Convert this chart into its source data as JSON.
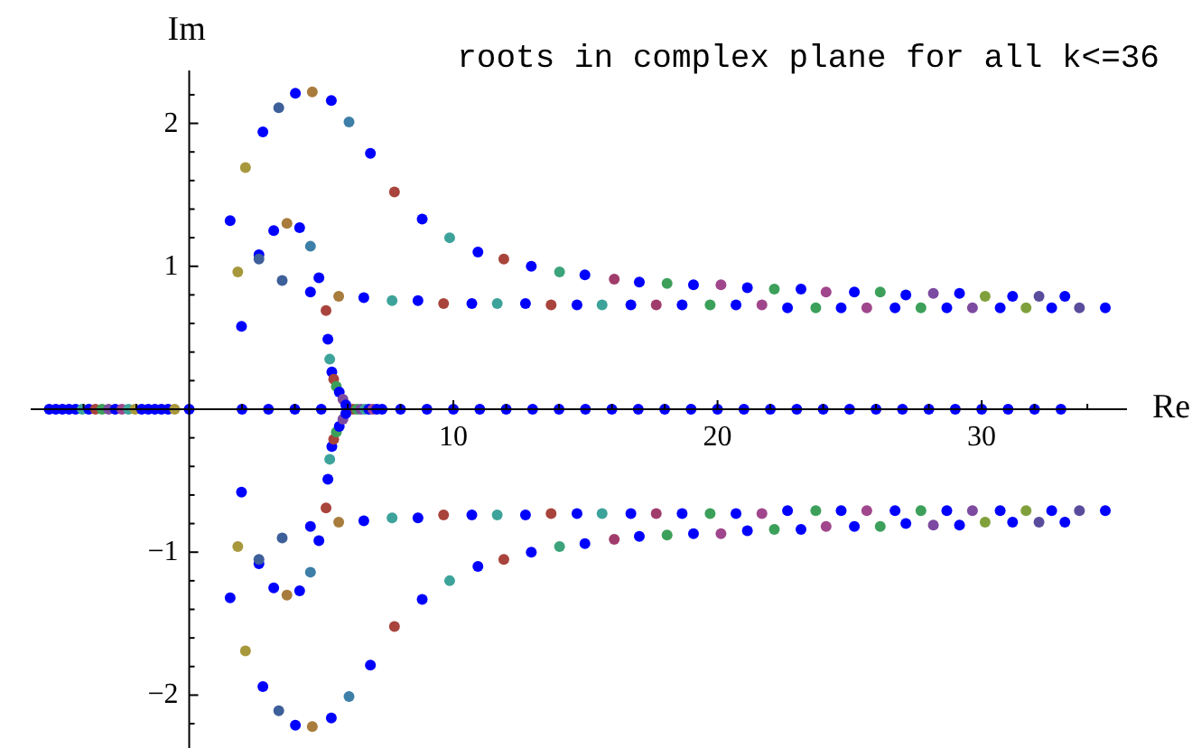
{
  "chart_data": {
    "type": "scatter",
    "title": "roots in complex plane for all k<=36",
    "xlabel": "Re",
    "ylabel": "Im",
    "marker": "circle",
    "xlim": [
      -6,
      35.5
    ],
    "ylim": [
      -2.37,
      2.37
    ],
    "xticks": [
      {
        "value": -4,
        "label": null
      },
      {
        "value": -2,
        "label": null
      },
      {
        "value": 2,
        "label": null
      },
      {
        "value": 4,
        "label": null
      },
      {
        "value": 6,
        "label": null
      },
      {
        "value": 8,
        "label": null
      },
      10,
      {
        "value": 12,
        "label": null
      },
      {
        "value": 14,
        "label": null
      },
      {
        "value": 16,
        "label": null
      },
      {
        "value": 18,
        "label": null
      },
      20,
      {
        "value": 22,
        "label": null
      },
      {
        "value": 24,
        "label": null
      },
      {
        "value": 26,
        "label": null
      },
      {
        "value": 28,
        "label": null
      },
      30,
      {
        "value": 32,
        "label": null
      },
      {
        "value": 34,
        "label": null
      }
    ],
    "yticks": [
      {
        "value": -2.2,
        "label": null
      },
      {
        "value": -2,
        "label": "−2"
      },
      {
        "value": -1.8,
        "label": null
      },
      {
        "value": -1.6,
        "label": null
      },
      {
        "value": -1.4,
        "label": null
      },
      {
        "value": -1.2,
        "label": null
      },
      {
        "value": -1,
        "label": "−1"
      },
      {
        "value": -0.8,
        "label": null
      },
      {
        "value": -0.6,
        "label": null
      },
      {
        "value": -0.4,
        "label": null
      },
      {
        "value": -0.2,
        "label": null
      },
      {
        "value": 0.2,
        "label": null
      },
      {
        "value": 0.4,
        "label": null
      },
      {
        "value": 0.6,
        "label": null
      },
      {
        "value": 0.8,
        "label": null
      },
      1,
      {
        "value": 1.2,
        "label": null
      },
      {
        "value": 1.4,
        "label": null
      },
      {
        "value": 1.6,
        "label": null
      },
      {
        "value": 1.8,
        "label": null
      },
      2,
      {
        "value": 2.2,
        "label": null
      }
    ],
    "series": [
      {
        "x": [
          -5.3,
          -5.05,
          -4.8,
          -4.55,
          -4.3,
          -4.05,
          -3.8,
          -3.55,
          -3.3,
          -3.05,
          -2.8,
          -2.55,
          -2.3,
          -2.05,
          -1.8,
          -1.55,
          -1.3,
          -1.05,
          -0.8,
          -0.55,
          0,
          2,
          3,
          4,
          5,
          6.2,
          6.35,
          6.5,
          6.65,
          6.8,
          6.95,
          7.1,
          7.3,
          8,
          9,
          10,
          11,
          12,
          13,
          14,
          15,
          16,
          17,
          18,
          19,
          20,
          21,
          22,
          23,
          24,
          25,
          26,
          27,
          28,
          29,
          30,
          31,
          32,
          33
        ],
        "values": [
          0,
          0,
          0,
          0,
          0,
          0,
          0,
          0,
          0,
          0,
          0,
          0,
          0,
          0,
          0,
          0,
          0,
          0,
          0,
          0,
          0,
          0,
          0,
          0,
          0,
          0,
          0,
          0,
          0,
          0,
          0,
          0,
          0,
          0,
          0,
          0,
          0,
          0,
          0,
          0,
          0,
          0,
          0,
          0,
          0,
          0,
          0,
          0,
          0,
          0,
          0,
          0,
          0,
          0,
          0,
          0,
          0,
          0,
          0
        ],
        "colors": [
          "#0000ff",
          "#0000ff",
          "#0000ff",
          "#0000ff",
          "#0000ff",
          "#3da39a",
          "#0000ff",
          "#a8443c",
          "#3ca05a",
          "#7c4aa0",
          "#0000ff",
          "#a0468c",
          "#3da39a",
          "#a8983c",
          "#0000ff",
          "#0000ff",
          "#0000ff",
          "#0000ff",
          "#0000ff",
          "#a8983c",
          "#0000ff",
          "#0000ff",
          "#0000ff",
          "#0000ff",
          "#0000ff",
          "#a8443c",
          "#3ca05a",
          "#7c4aa0",
          "#3da39a",
          "#0000ff",
          "#a0468c",
          "#0000ff",
          "#0000ff",
          "#0000ff",
          "#0000ff",
          "#0000ff",
          "#0000ff",
          "#0000ff",
          "#0000ff",
          "#0000ff",
          "#0000ff",
          "#0000ff",
          "#0000ff",
          "#0000ff",
          "#0000ff",
          "#0000ff",
          "#0000ff",
          "#0000ff",
          "#0000ff",
          "#0000ff",
          "#0000ff",
          "#0000ff",
          "#0000ff",
          "#0000ff",
          "#0000ff",
          "#0000ff",
          "#0000ff",
          "#0000ff",
          "#0000ff"
        ]
      },
      {
        "x": [
          2.13,
          2.79,
          3.39,
          4.02,
          4.66,
          5.38,
          6.05,
          6.86,
          7.77,
          8.82,
          9.86,
          10.93,
          11.91,
          12.95,
          14.02,
          14.98,
          16.09,
          17.04,
          18.09,
          19.09,
          20.13,
          21.13,
          22.15,
          23.16,
          24.11,
          25.18,
          26.16,
          27.13,
          28.17,
          29.16,
          30.13,
          31.17,
          32.17,
          33.15
        ],
        "values": [
          1.69,
          1.94,
          2.11,
          2.21,
          2.22,
          2.16,
          2.01,
          1.79,
          1.52,
          1.33,
          1.2,
          1.1,
          1.05,
          1.0,
          0.96,
          0.94,
          0.91,
          0.89,
          0.88,
          0.87,
          0.87,
          0.85,
          0.84,
          0.84,
          0.82,
          0.82,
          0.82,
          0.8,
          0.81,
          0.81,
          0.79,
          0.79,
          0.79,
          0.79
        ],
        "colors": [
          "#a8983c",
          "#0000ff",
          "#3d5f9a",
          "#0000ff",
          "#a87c3c",
          "#0000ff",
          "#3d7fa8",
          "#0000ff",
          "#a8443c",
          "#0000ff",
          "#3da39a",
          "#0000ff",
          "#a8443c",
          "#0000ff",
          "#3ca37a",
          "#0000ff",
          "#a03c6c",
          "#0000ff",
          "#3ca05a",
          "#0000ff",
          "#a0468c",
          "#0000ff",
          "#3ca05a",
          "#0000ff",
          "#a0468c",
          "#0000ff",
          "#3ca05a",
          "#0000ff",
          "#7c4aa0",
          "#0000ff",
          "#80a03c",
          "#0000ff",
          "#5a4c9c",
          "#0000ff"
        ]
      },
      {
        "x": [
          6.61,
          7.68,
          8.66,
          9.63,
          10.7,
          11.66,
          12.73,
          13.7,
          14.68,
          15.63,
          16.72,
          17.68,
          18.66,
          19.72,
          20.7,
          21.68,
          22.65,
          23.72,
          24.68,
          25.65,
          26.72,
          27.7,
          28.68,
          29.65,
          30.7,
          31.68,
          32.65,
          33.7,
          34.68
        ],
        "values": [
          0.78,
          0.76,
          0.76,
          0.74,
          0.74,
          0.74,
          0.74,
          0.73,
          0.73,
          0.73,
          0.73,
          0.73,
          0.73,
          0.73,
          0.73,
          0.73,
          0.71,
          0.71,
          0.71,
          0.71,
          0.71,
          0.71,
          0.71,
          0.71,
          0.71,
          0.71,
          0.71,
          0.71,
          0.71
        ],
        "colors": [
          "#0000ff",
          "#3da39a",
          "#0000ff",
          "#a8443c",
          "#0000ff",
          "#3da39a",
          "#0000ff",
          "#a8443c",
          "#0000ff",
          "#3da39a",
          "#0000ff",
          "#a03c6c",
          "#0000ff",
          "#3ca05a",
          "#0000ff",
          "#a0468c",
          "#0000ff",
          "#3ca05a",
          "#0000ff",
          "#a0468c",
          "#0000ff",
          "#3ca05a",
          "#0000ff",
          "#7c4aa0",
          "#0000ff",
          "#80a03c",
          "#0000ff",
          "#5a4c9c",
          "#0000ff"
        ]
      },
      {
        "x": [
          1.55,
          1.84,
          1.98,
          2.64,
          2.64,
          3.2,
          3.52,
          3.7,
          4.18,
          4.59,
          4.59,
          4.91,
          5.18,
          5.66,
          5.25,
          5.32,
          5.4,
          5.47,
          5.57,
          5.68,
          5.82,
          5.93
        ],
        "values": [
          1.32,
          0.96,
          0.58,
          1.08,
          1.05,
          1.25,
          0.9,
          1.3,
          1.27,
          1.14,
          0.82,
          0.92,
          0.69,
          0.79,
          0.49,
          0.35,
          0.26,
          0.21,
          0.16,
          0.12,
          0.07,
          0.03
        ],
        "colors": [
          "#0000ff",
          "#a8983c",
          "#0000ff",
          "#0000ff",
          "#3d5f9a",
          "#0000ff",
          "#3d5f9a",
          "#a87c3c",
          "#0000ff",
          "#3d7fa8",
          "#0000ff",
          "#0000ff",
          "#a8443c",
          "#a87c3c",
          "#0000ff",
          "#3da39a",
          "#0000ff",
          "#a8443c",
          "#3ca05a",
          "#0000ff",
          "#7c4aa0",
          "#0000ff"
        ]
      },
      {
        "x": [
          2.13,
          2.79,
          3.39,
          4.02,
          4.66,
          5.38,
          6.05,
          6.86,
          7.77,
          8.82,
          9.86,
          10.93,
          11.91,
          12.95,
          14.02,
          14.98,
          16.09,
          17.04,
          18.09,
          19.09,
          20.13,
          21.13,
          22.15,
          23.16,
          24.11,
          25.18,
          26.16,
          27.13,
          28.17,
          29.16,
          30.13,
          31.17,
          32.17,
          33.15
        ],
        "values": [
          -1.69,
          -1.94,
          -2.11,
          -2.21,
          -2.22,
          -2.16,
          -2.01,
          -1.79,
          -1.52,
          -1.33,
          -1.2,
          -1.1,
          -1.05,
          -1.0,
          -0.96,
          -0.94,
          -0.91,
          -0.89,
          -0.88,
          -0.87,
          -0.87,
          -0.85,
          -0.84,
          -0.84,
          -0.82,
          -0.82,
          -0.82,
          -0.8,
          -0.81,
          -0.81,
          -0.79,
          -0.79,
          -0.79,
          -0.79
        ],
        "colors": [
          "#a8983c",
          "#0000ff",
          "#3d5f9a",
          "#0000ff",
          "#a87c3c",
          "#0000ff",
          "#3d7fa8",
          "#0000ff",
          "#a8443c",
          "#0000ff",
          "#3da39a",
          "#0000ff",
          "#a8443c",
          "#0000ff",
          "#3ca37a",
          "#0000ff",
          "#a03c6c",
          "#0000ff",
          "#3ca05a",
          "#0000ff",
          "#a0468c",
          "#0000ff",
          "#3ca05a",
          "#0000ff",
          "#a0468c",
          "#0000ff",
          "#3ca05a",
          "#0000ff",
          "#7c4aa0",
          "#0000ff",
          "#80a03c",
          "#0000ff",
          "#5a4c9c",
          "#0000ff"
        ]
      },
      {
        "x": [
          6.61,
          7.68,
          8.66,
          9.63,
          10.7,
          11.66,
          12.73,
          13.7,
          14.68,
          15.63,
          16.72,
          17.68,
          18.66,
          19.72,
          20.7,
          21.68,
          22.65,
          23.72,
          24.68,
          25.65,
          26.72,
          27.7,
          28.68,
          29.65,
          30.7,
          31.68,
          32.65,
          33.7,
          34.68
        ],
        "values": [
          -0.78,
          -0.76,
          -0.76,
          -0.74,
          -0.74,
          -0.74,
          -0.74,
          -0.73,
          -0.73,
          -0.73,
          -0.73,
          -0.73,
          -0.73,
          -0.73,
          -0.73,
          -0.73,
          -0.71,
          -0.71,
          -0.71,
          -0.71,
          -0.71,
          -0.71,
          -0.71,
          -0.71,
          -0.71,
          -0.71,
          -0.71,
          -0.71,
          -0.71
        ],
        "colors": [
          "#0000ff",
          "#3da39a",
          "#0000ff",
          "#a8443c",
          "#0000ff",
          "#3da39a",
          "#0000ff",
          "#a8443c",
          "#0000ff",
          "#3da39a",
          "#0000ff",
          "#a03c6c",
          "#0000ff",
          "#3ca05a",
          "#0000ff",
          "#a0468c",
          "#0000ff",
          "#3ca05a",
          "#0000ff",
          "#a0468c",
          "#0000ff",
          "#3ca05a",
          "#0000ff",
          "#7c4aa0",
          "#0000ff",
          "#80a03c",
          "#0000ff",
          "#5a4c9c",
          "#0000ff"
        ]
      },
      {
        "x": [
          1.55,
          1.84,
          1.98,
          2.64,
          2.64,
          3.2,
          3.52,
          3.7,
          4.18,
          4.59,
          4.59,
          4.91,
          5.18,
          5.66,
          5.25,
          5.32,
          5.4,
          5.47,
          5.57,
          5.68,
          5.82,
          5.93
        ],
        "values": [
          -1.32,
          -0.96,
          -0.58,
          -1.08,
          -1.05,
          -1.25,
          -0.9,
          -1.3,
          -1.27,
          -1.14,
          -0.82,
          -0.92,
          -0.69,
          -0.79,
          -0.49,
          -0.35,
          -0.26,
          -0.21,
          -0.16,
          -0.12,
          -0.07,
          -0.03
        ],
        "colors": [
          "#0000ff",
          "#a8983c",
          "#0000ff",
          "#0000ff",
          "#3d5f9a",
          "#0000ff",
          "#3d5f9a",
          "#a87c3c",
          "#0000ff",
          "#3d7fa8",
          "#0000ff",
          "#0000ff",
          "#a8443c",
          "#a87c3c",
          "#0000ff",
          "#3da39a",
          "#0000ff",
          "#a8443c",
          "#3ca05a",
          "#0000ff",
          "#7c4aa0",
          "#0000ff"
        ]
      }
    ]
  }
}
